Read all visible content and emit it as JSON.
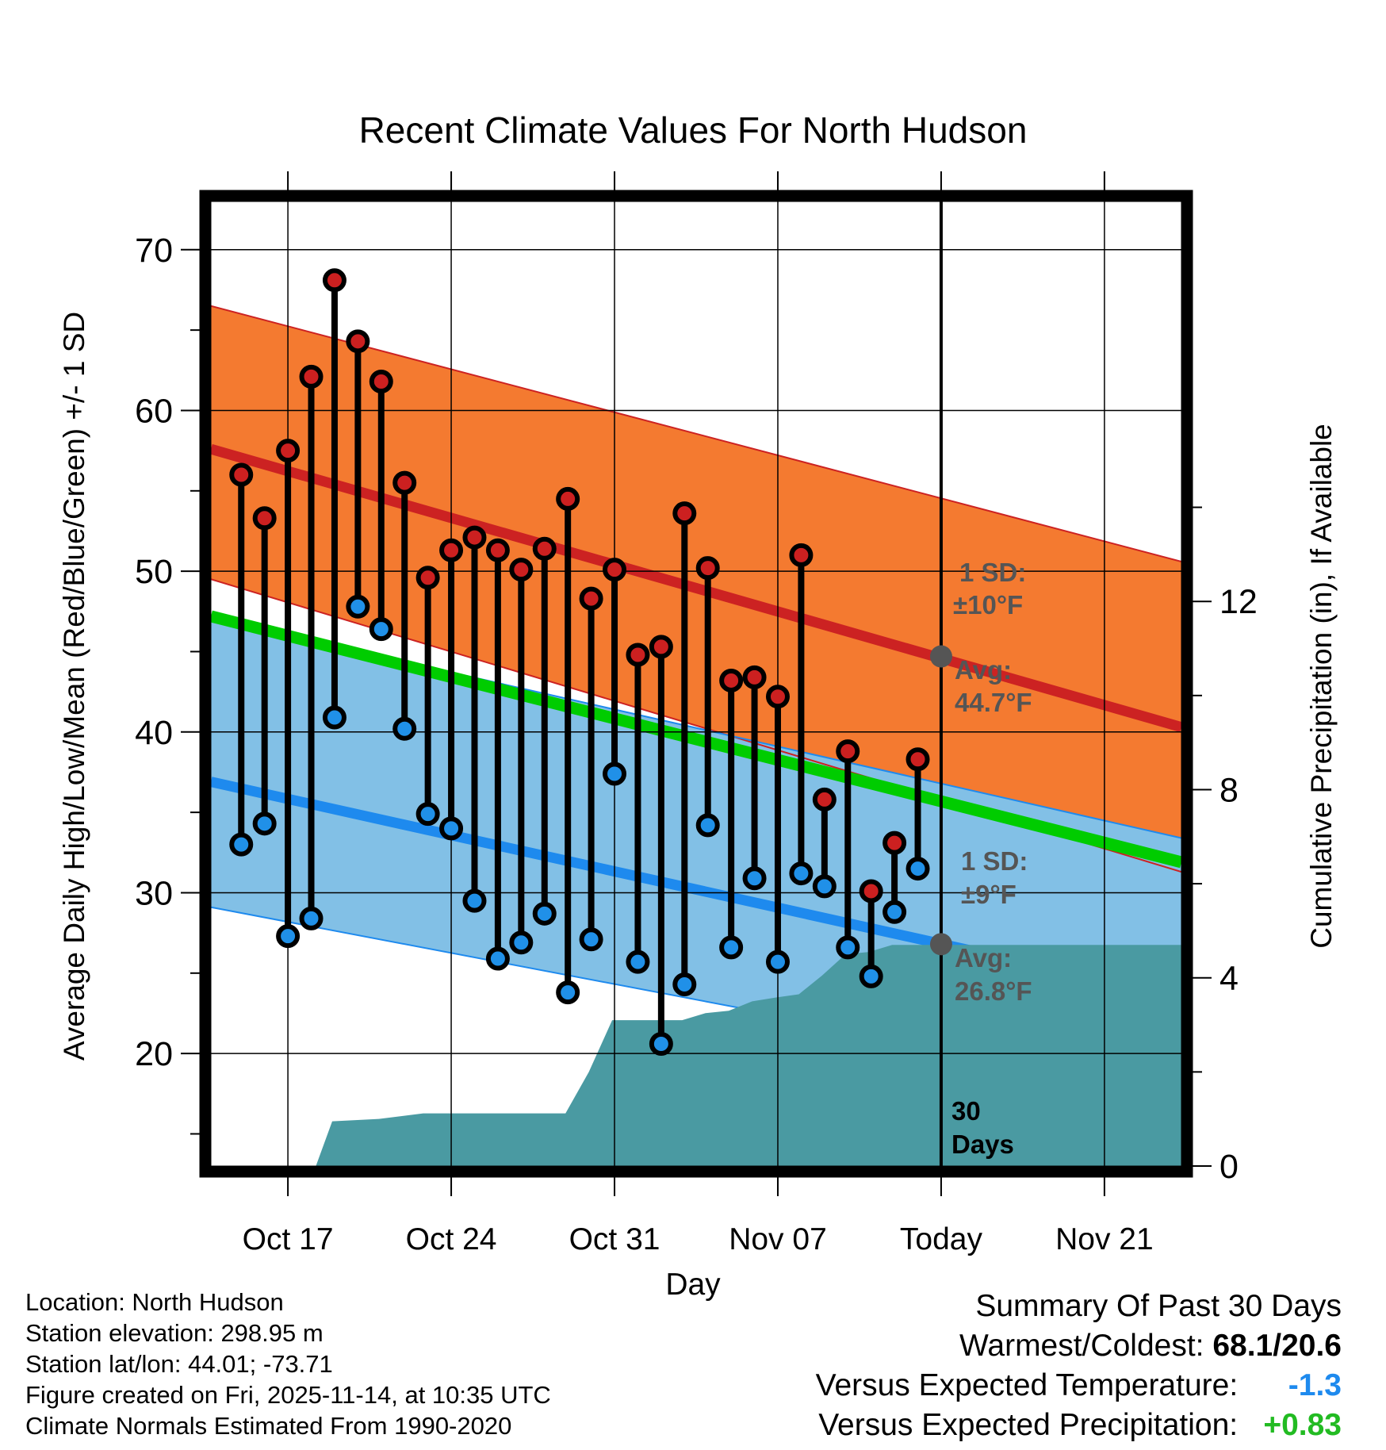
{
  "chart_data": {
    "type": "line",
    "title": "Recent Climate Values For North Hudson",
    "xlabel": "Day",
    "ylabel": "Average Daily High/Low/Mean (Red/Blue/Green) +/- 1 SD",
    "y2label": "Cumulative Precipitation (in), If Available",
    "ylim": [
      13,
      73
    ],
    "y2lim": [
      0,
      20.5
    ],
    "xlim": [
      -3.3,
      38.3
    ],
    "yticks": [
      "20",
      "30",
      "40",
      "50",
      "60",
      "70"
    ],
    "y2ticks": [
      "0",
      "4",
      "8",
      "12"
    ],
    "xticks": [
      {
        "x": 0,
        "label": "Oct 17"
      },
      {
        "x": 7,
        "label": "Oct 24"
      },
      {
        "x": 14,
        "label": "Oct 31"
      },
      {
        "x": 21,
        "label": "Nov 07"
      },
      {
        "x": 28,
        "label": "Today"
      },
      {
        "x": 35,
        "label": "Nov 21"
      }
    ],
    "today_index": 28,
    "normals": {
      "high_avg": {
        "start": 57.6,
        "end": 40.3
      },
      "high_upper": {
        "start": 66.5,
        "end": 50.6
      },
      "high_lower": {
        "start": 49.5,
        "end": 31.3
      },
      "low_avg": {
        "start": 36.9,
        "end": 23.5
      },
      "low_upper": {
        "start": 47.1,
        "end": 33.4
      },
      "low_lower": {
        "start": 29.1,
        "end": 17.6
      },
      "mean_avg": {
        "start": 47.2,
        "end": 31.9
      }
    },
    "daily": [
      {
        "x": -2,
        "high": 56.0,
        "low": 33.0
      },
      {
        "x": -1,
        "high": 53.3,
        "low": 34.3
      },
      {
        "x": 0,
        "high": 57.5,
        "low": 27.3
      },
      {
        "x": 1,
        "high": 62.1,
        "low": 28.4
      },
      {
        "x": 2,
        "high": 68.1,
        "low": 40.9
      },
      {
        "x": 3,
        "high": 64.3,
        "low": 47.8
      },
      {
        "x": 4,
        "high": 61.8,
        "low": 46.4
      },
      {
        "x": 5,
        "high": 55.5,
        "low": 40.2
      },
      {
        "x": 6,
        "high": 49.6,
        "low": 34.9
      },
      {
        "x": 7,
        "high": 51.3,
        "low": 34.0
      },
      {
        "x": 8,
        "high": 52.1,
        "low": 29.5
      },
      {
        "x": 9,
        "high": 51.3,
        "low": 25.9
      },
      {
        "x": 10,
        "high": 50.1,
        "low": 26.9
      },
      {
        "x": 11,
        "high": 51.4,
        "low": 28.7
      },
      {
        "x": 12,
        "high": 54.5,
        "low": 23.8
      },
      {
        "x": 13,
        "high": 48.3,
        "low": 27.1
      },
      {
        "x": 14,
        "high": 50.1,
        "low": 37.4
      },
      {
        "x": 15,
        "high": 44.8,
        "low": 25.7
      },
      {
        "x": 16,
        "high": 45.3,
        "low": 20.6
      },
      {
        "x": 17,
        "high": 53.6,
        "low": 24.3
      },
      {
        "x": 18,
        "high": 50.2,
        "low": 34.2
      },
      {
        "x": 19,
        "high": 43.2,
        "low": 26.6
      },
      {
        "x": 20,
        "high": 43.4,
        "low": 30.9
      },
      {
        "x": 21,
        "high": 42.2,
        "low": 25.7
      },
      {
        "x": 22,
        "high": 51.0,
        "low": 31.2
      },
      {
        "x": 23,
        "high": 35.8,
        "low": 30.4
      },
      {
        "x": 24,
        "high": 38.8,
        "low": 26.6
      },
      {
        "x": 25,
        "high": 30.1,
        "low": 24.8
      },
      {
        "x": 26,
        "high": 33.1,
        "low": 28.8
      },
      {
        "x": 27,
        "high": 38.3,
        "low": 31.5
      }
    ],
    "precip_cumulative": [
      {
        "x": 1.2,
        "p": 0.0
      },
      {
        "x": 1.9,
        "p": 0.95
      },
      {
        "x": 3.9,
        "p": 1.0
      },
      {
        "x": 5.8,
        "p": 1.12
      },
      {
        "x": 11.9,
        "p": 1.12
      },
      {
        "x": 12.9,
        "p": 2.0
      },
      {
        "x": 13.9,
        "p": 3.1
      },
      {
        "x": 16.9,
        "p": 3.1
      },
      {
        "x": 17.9,
        "p": 3.25
      },
      {
        "x": 18.9,
        "p": 3.3
      },
      {
        "x": 19.9,
        "p": 3.5
      },
      {
        "x": 20.9,
        "p": 3.58
      },
      {
        "x": 21.9,
        "p": 3.65
      },
      {
        "x": 22.9,
        "p": 4.05
      },
      {
        "x": 23.9,
        "p": 4.5
      },
      {
        "x": 24.9,
        "p": 4.55
      },
      {
        "x": 25.9,
        "p": 4.7
      },
      {
        "x": 38.3,
        "p": 4.7
      }
    ],
    "annotations": {
      "high_sd_label": "1 SD:",
      "high_sd_value": "±10°F",
      "high_avg_label": "Avg:",
      "high_avg_value": "44.7°F",
      "low_sd_label": "1 SD:",
      "low_sd_value": "±9°F",
      "low_avg_label": "Avg:",
      "low_avg_value": "26.8°F",
      "days_number": "30",
      "days_word": "Days",
      "today_high_avg": 44.7,
      "today_low_avg": 26.8
    },
    "colors": {
      "high_band": "#f47a30",
      "high_line": "#cc2222",
      "low_band": "#82c0e6",
      "low_line": "#1e8aee",
      "mean_line": "#00cc00",
      "precip": "#4a9aa2",
      "high_dot": "#cc2020",
      "low_dot": "#2090e8",
      "today_marker": "#555555",
      "annotation_text": "#555555"
    }
  },
  "info": {
    "location": "Location: North Hudson",
    "elevation": "Station elevation: 298.95 m",
    "latlon": "Station lat/lon: 44.01; -73.71",
    "created": "Figure created on Fri, 2025-11-14, at 10:35 UTC",
    "normals": "Climate Normals Estimated From 1990-2020"
  },
  "summary": {
    "title": "Summary Of Past 30 Days",
    "warm_cold_label": "Warmest/Coldest:",
    "warm_cold_value": "68.1/20.6",
    "temp_label": "Versus Expected Temperature:",
    "temp_value": "-1.3",
    "temp_color": "#1e8aee",
    "precip_label": "Versus Expected Precipitation:",
    "precip_value": "+0.83",
    "precip_color": "#22bb22"
  }
}
